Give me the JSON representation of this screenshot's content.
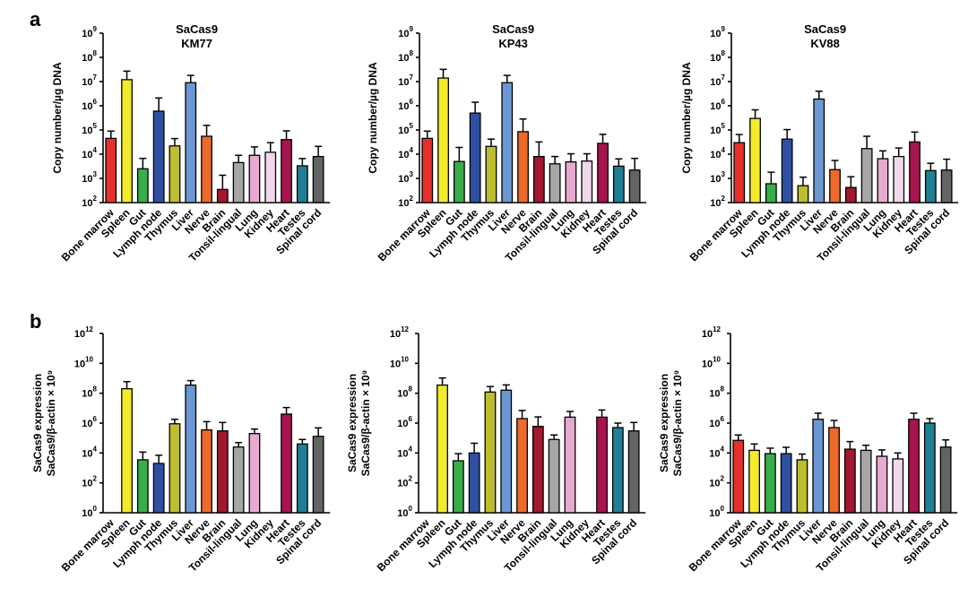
{
  "panels": [
    {
      "letter": "a"
    },
    {
      "letter": "b"
    }
  ],
  "colors": {
    "Bone marrow": "#e4312b",
    "Spleen": "#f2ea2b",
    "Gut": "#3aad4b",
    "Lymph node": "#2f50a2",
    "Thymus": "#bdbd2e",
    "Liver": "#6b97d2",
    "Nerve": "#ee6a2a",
    "Brain": "#a3172f",
    "Tonsil-lingual": "#a6a6a6",
    "Lung": "#e6a9cf",
    "Kidney": "#f1d7ea",
    "Heart": "#a8144f",
    "Testes": "#1f7f93",
    "Spinal cord": "#646464"
  },
  "chart_data": [
    {
      "type": "bar",
      "panel": "a",
      "title": "SaCas9",
      "subtitle": "KM77",
      "ylabel": "Copy number/µg DNA",
      "yscale": "log",
      "ylim_exp": [
        2,
        9
      ],
      "categories": [
        "Bone marrow",
        "Spleen",
        "Gut",
        "Lymph node",
        "Thymus",
        "Liver",
        "Nerve",
        "Brain",
        "Tonsil-lingual",
        "Lung",
        "Kidney",
        "Heart",
        "Testes",
        "Spinal cord"
      ],
      "values": [
        45000,
        12000000,
        2500,
        600000,
        22000,
        9000000,
        55000,
        350,
        4500,
        9000,
        12000,
        40000,
        3300,
        8000
      ],
      "errors": [
        45000,
        15000000,
        4200,
        1500000,
        22000,
        9000000,
        100000,
        1000,
        4500,
        11000,
        18000,
        52000,
        3300,
        13000
      ]
    },
    {
      "type": "bar",
      "panel": "a",
      "title": "SaCas9",
      "subtitle": "KP43",
      "ylabel": "Copy number/µg DNA",
      "yscale": "log",
      "ylim_exp": [
        2,
        9
      ],
      "categories": [
        "Bone marrow",
        "Spleen",
        "Gut",
        "Lymph node",
        "Thymus",
        "Liver",
        "Nerve",
        "Brain",
        "Tonsil-lingual",
        "Lung",
        "Kidney",
        "Heart",
        "Testes",
        "Spinal cord"
      ],
      "values": [
        45000,
        14000000,
        5000,
        500000,
        21000,
        9000000,
        85000,
        8000,
        4000,
        4800,
        5200,
        28000,
        3200,
        2200
      ],
      "errors": [
        45000,
        18000000,
        14000,
        900000,
        21000,
        9000000,
        200000,
        24000,
        4000,
        5600,
        5200,
        38000,
        3200,
        4500
      ]
    },
    {
      "type": "bar",
      "panel": "a",
      "title": "SaCas9",
      "subtitle": "KV88",
      "ylabel": "Copy number/µg DNA",
      "yscale": "log",
      "ylim_exp": [
        2,
        9
      ],
      "categories": [
        "Bone marrow",
        "Spleen",
        "Gut",
        "Lymph node",
        "Thymus",
        "Liver",
        "Nerve",
        "Brain",
        "Tonsil-lingual",
        "Lung",
        "Kidney",
        "Heart",
        "Testes",
        "Spinal cord"
      ],
      "values": [
        30000,
        300000,
        600,
        42000,
        500,
        1900000,
        2300,
        420,
        17000,
        6500,
        8000,
        32000,
        2100,
        2200
      ],
      "errors": [
        35000,
        380000,
        1200,
        62000,
        620,
        2100000,
        3200,
        750,
        38000,
        7200,
        10000,
        50000,
        2100,
        4000
      ]
    },
    {
      "type": "bar",
      "panel": "b",
      "title": "",
      "subtitle": "",
      "ylabel": "SaCas9 expression",
      "ylabel2": "SaCas9/β-actin × 10⁹",
      "yscale": "log",
      "ylim_exp": [
        0,
        12
      ],
      "categories": [
        "Bone marrow",
        "Spleen",
        "Gut",
        "Lymph node",
        "Thymus",
        "Liver",
        "Nerve",
        "Brain",
        "Tonsil-lingual",
        "Lung",
        "Kidney",
        "Heart",
        "Testes",
        "Spinal cord"
      ],
      "values": [
        null,
        200000000,
        3500,
        2000,
        900000,
        350000000,
        350000,
        300000,
        25000,
        200000,
        null,
        4000000,
        40000,
        130000
      ],
      "errors": [
        null,
        400000000,
        8000,
        5000,
        900000,
        350000000,
        900000,
        800000,
        25000,
        200000,
        null,
        7000000,
        40000,
        350000
      ]
    },
    {
      "type": "bar",
      "panel": "b",
      "title": "",
      "subtitle": "",
      "ylabel": "SaCas9 expression",
      "ylabel2": "SaCas9/β-actin × 10⁹",
      "yscale": "log",
      "ylim_exp": [
        0,
        12
      ],
      "categories": [
        "Bone marrow",
        "Spleen",
        "Gut",
        "Lymph node",
        "Thymus",
        "Liver",
        "Nerve",
        "Brain",
        "Tonsil-lingual",
        "Lung",
        "Kidney",
        "Heart",
        "Testes",
        "Spinal cord"
      ],
      "values": [
        null,
        350000000,
        3000,
        10000,
        120000000,
        160000000,
        2000000,
        600000,
        80000,
        2500000,
        null,
        2500000,
        500000,
        300000
      ],
      "errors": [
        null,
        700000000,
        6000,
        35000,
        160000000,
        200000000,
        5000000,
        2000000,
        80000,
        3500000,
        null,
        5000000,
        500000,
        800000
      ]
    },
    {
      "type": "bar",
      "panel": "b",
      "title": "",
      "subtitle": "",
      "ylabel": "SaCas9 expression",
      "ylabel2": "SaCas9/β-actin × 10⁹",
      "yscale": "log",
      "ylim_exp": [
        0,
        12
      ],
      "categories": [
        "Bone marrow",
        "Spleen",
        "Gut",
        "Lymph node",
        "Thymus",
        "Liver",
        "Nerve",
        "Brain",
        "Tonsil-lingual",
        "Lung",
        "Kidney",
        "Heart",
        "Testes",
        "Spinal cord"
      ],
      "values": [
        70000,
        15000,
        9000,
        9000,
        3500,
        1800000,
        500000,
        18000,
        15000,
        6000,
        4000,
        1800000,
        1000000,
        25000
      ],
      "errors": [
        90000,
        25000,
        12000,
        15000,
        5000,
        2800000,
        1000000,
        40000,
        18000,
        10000,
        6000,
        2800000,
        1000000,
        50000
      ]
    }
  ]
}
